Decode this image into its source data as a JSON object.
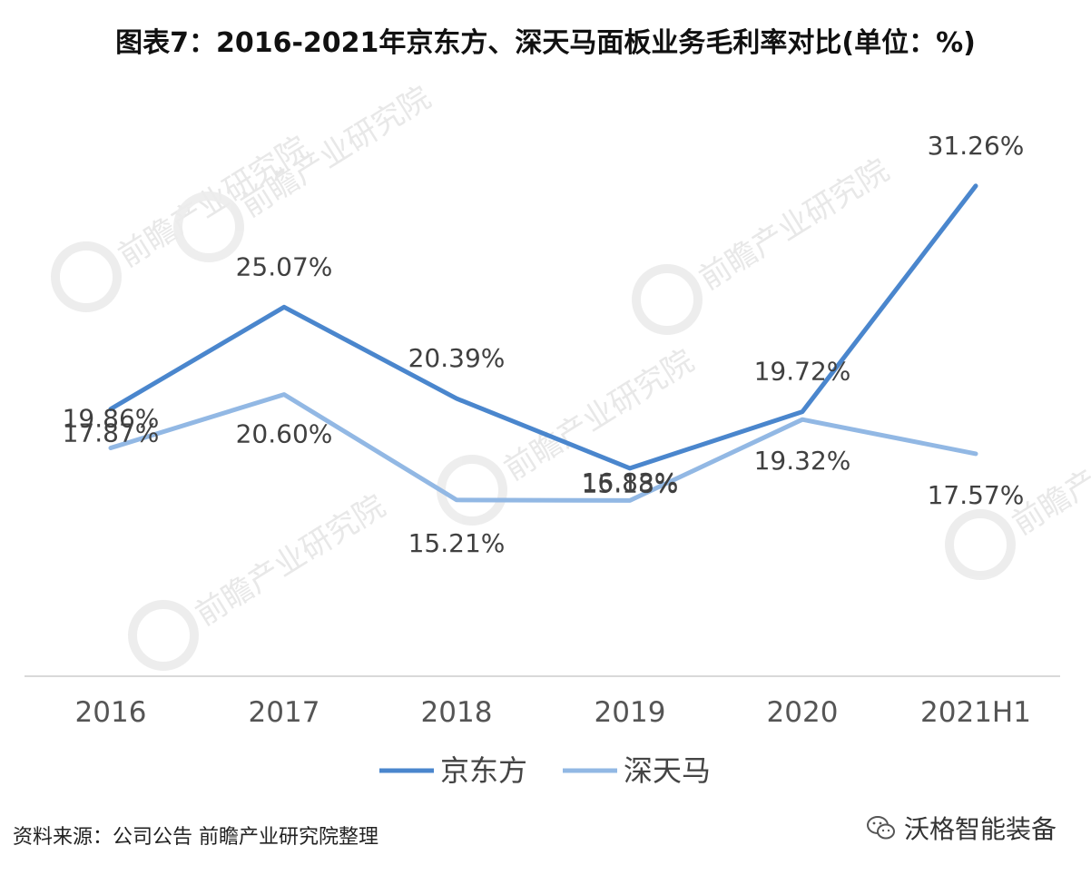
{
  "chart_data": {
    "type": "line",
    "title": "图表7：2016-2021年京东方、深天马面板业务毛利率对比(单位：%)",
    "categories": [
      "2016",
      "2017",
      "2018",
      "2019",
      "2020",
      "2021H1"
    ],
    "series": [
      {
        "name": "京东方",
        "color": "#4a86cd",
        "values": [
          19.86,
          25.07,
          20.39,
          16.83,
          19.72,
          31.26
        ],
        "labels": [
          "19.86%",
          "25.07%",
          "20.39%",
          "16.83%",
          "19.72%",
          "31.26%"
        ]
      },
      {
        "name": "深天马",
        "color": "#92b8e4",
        "values": [
          17.87,
          20.6,
          15.21,
          15.18,
          19.32,
          17.57
        ],
        "labels": [
          "17.87%",
          "20.60%",
          "15.21%",
          "15.18%",
          "19.32%",
          "17.57%"
        ]
      }
    ],
    "ylim": [
      6.2,
      34.5
    ],
    "grid": false,
    "legend": "bottom"
  },
  "source_note": "资料来源：公司公告 前瞻产业研究院整理",
  "brand_name": "沃格智能装备",
  "watermark_text": "前瞻产业研究院"
}
